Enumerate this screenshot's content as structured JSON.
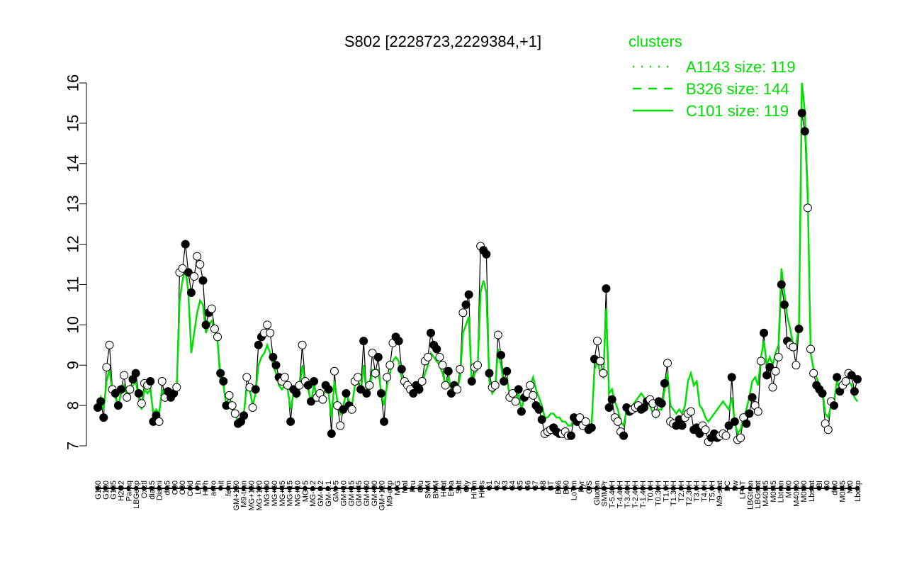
{
  "chart_data": {
    "type": "line",
    "title": "S802 [2228723,2229384,+1]",
    "xlabel": "",
    "ylabel": "",
    "ylim": [
      7,
      16
    ],
    "yticks": [
      "7",
      "8",
      "9",
      "10",
      "11",
      "12",
      "13",
      "14",
      "15",
      "16"
    ],
    "x_tick_labels": [
      "G150",
      "G180",
      "G135",
      "H2O2",
      "Paraq",
      "LBGexp",
      "Oxctl",
      "dia15",
      "Diami",
      "dia5",
      "C90",
      "C30",
      "Cold",
      "LPh",
      "HPh",
      "aero",
      "nit",
      "ferm",
      "GM+150",
      "M9-tran",
      "MG+150",
      "MG+120",
      "MG+90",
      "MG+60",
      "MG+45",
      "MG+15",
      "MG+10",
      "MG+5",
      "MG-0.2",
      "GM-0.2",
      "GM-0.1",
      "GM+5",
      "GM+10",
      "GM+15",
      "GM+45",
      "GM+60",
      "GM+90",
      "GM+120",
      "M9-exp",
      "M/G",
      "Mal",
      "Fru",
      "Glu",
      "SMM",
      "BMM",
      "Heat",
      "Etha",
      "Salt",
      "Gly",
      "HiTm",
      "HiOs",
      "S1",
      "S2",
      "S3",
      "S4",
      "S5",
      "S6",
      "S7",
      "S8",
      "BT",
      "B36",
      "B60",
      "LoTm",
      "Pyr",
      "G/S",
      "Glucon",
      "SMMPr",
      "T-5.40H",
      "T-4.40H",
      "T-3.40H",
      "T-2.40H",
      "T-1.40H",
      "T0.0H",
      "T0.30H",
      "T1.0H",
      "T1.30H",
      "T2.0H",
      "T2.30H",
      "T3.0H",
      "T4.0H",
      "T5.0H",
      "M9-stat",
      "BC",
      "Sw",
      "LPhT",
      "LBGtran",
      "LBGstat",
      "M40t45",
      "M0t45",
      "Lbtran",
      "M0t0",
      "M40t90",
      "M0t90",
      "Lbstat",
      "BI",
      "S0",
      "dia0",
      "M0t45",
      "Mt0",
      "Lbexp"
    ],
    "legend": {
      "title": "clusters",
      "placement": "top-right",
      "entries": [
        {
          "name": "A1143 size: 119",
          "style": "dotted"
        },
        {
          "name": "B326 size: 144",
          "style": "dashed"
        },
        {
          "name": "C101 size: 119",
          "style": "solid"
        }
      ]
    },
    "series": [
      {
        "style": "black-points-line",
        "values": [
          7.95,
          8.1,
          7.7,
          8.95,
          9.5,
          8.4,
          8.3,
          8.0,
          8.4,
          8.75,
          8.2,
          8.4,
          8.65,
          8.8,
          8.3,
          8.05,
          8.55,
          8.5,
          8.6,
          7.6,
          7.75,
          7.6,
          8.6,
          8.2,
          8.35,
          8.2,
          8.3,
          8.45,
          11.3,
          11.4,
          12.0,
          11.3,
          10.8,
          11.2,
          11.7,
          11.5,
          11.1,
          10.0,
          10.3,
          10.4,
          9.9,
          9.7,
          8.8,
          8.6,
          8.0,
          8.25,
          8.0,
          7.8,
          7.55,
          7.6,
          7.75,
          8.7,
          8.45,
          7.95,
          8.4,
          9.5,
          9.7,
          9.8,
          10.0,
          9.8,
          9.2,
          9.0,
          8.7,
          8.6,
          8.7,
          8.5,
          7.6,
          8.4,
          8.3,
          8.5,
          9.5,
          8.6,
          8.5,
          8.1,
          8.6,
          8.2,
          8.3,
          8.15,
          8.5,
          8.4,
          7.3,
          8.85,
          8.0,
          7.5,
          7.9,
          8.3,
          8.0,
          7.9,
          8.6,
          8.7,
          8.4,
          9.6,
          8.3,
          8.5,
          9.3,
          8.8,
          9.2,
          8.3,
          7.6,
          8.7,
          9.0,
          9.55,
          9.7,
          9.6,
          8.9,
          8.6,
          8.5,
          8.4,
          8.3,
          8.5,
          8.4,
          8.6,
          9.1,
          9.2,
          9.8,
          9.5,
          9.4,
          9.2,
          9.0,
          8.5,
          8.85,
          8.3,
          8.5,
          8.4,
          8.9,
          10.3,
          10.5,
          10.75,
          8.6,
          8.95,
          9.0,
          11.95,
          11.85,
          11.75,
          8.8,
          8.45,
          8.5,
          9.75,
          9.25,
          8.6,
          8.85,
          8.2,
          8.3,
          8.1,
          8.4,
          7.85,
          8.2,
          8.3,
          8.5,
          8.25,
          8.0,
          7.9,
          7.65,
          7.3,
          7.35,
          7.4,
          7.45,
          7.35,
          7.3,
          7.3,
          7.35,
          7.25,
          7.25,
          7.7,
          7.6,
          7.7,
          7.5,
          7.6,
          7.4,
          7.45,
          9.15,
          9.6,
          9.1,
          8.8,
          10.9,
          7.95,
          8.15,
          7.7,
          7.6,
          7.35,
          7.25,
          7.95,
          7.85,
          7.9,
          7.95,
          8.0,
          7.9,
          7.95,
          8.1,
          8.15,
          8.05,
          7.8,
          8.1,
          8.05,
          8.55,
          9.05,
          7.6,
          7.55,
          7.5,
          7.65,
          7.5,
          7.7,
          7.8,
          7.85,
          7.4,
          7.45,
          7.3,
          7.5,
          7.4,
          7.1,
          7.2,
          7.3,
          7.2,
          7.25,
          7.3,
          7.25,
          7.5,
          8.7,
          7.6,
          7.15,
          7.2,
          7.7,
          7.55,
          7.8,
          8.2,
          8.0,
          7.85,
          9.1,
          9.8,
          8.75,
          8.95,
          8.45,
          8.85,
          9.2,
          11.0,
          10.5,
          9.6,
          9.5,
          9.45,
          9.0,
          9.9,
          15.25,
          14.8,
          12.9,
          9.4,
          8.8,
          8.5,
          8.4,
          8.3,
          7.55,
          7.4,
          8.1,
          8.0,
          8.7,
          8.35,
          8.5,
          8.6,
          8.8,
          8.75,
          8.35,
          8.65
        ]
      },
      {
        "style": "green-solid",
        "values": [
          8.0,
          8.2,
          7.9,
          8.6,
          8.9,
          8.3,
          8.2,
          8.0,
          8.3,
          8.5,
          8.2,
          8.3,
          8.5,
          8.6,
          8.2,
          7.9,
          8.4,
          8.3,
          8.4,
          7.8,
          7.9,
          7.8,
          8.4,
          8.2,
          8.3,
          8.2,
          8.3,
          8.4,
          10.6,
          11.1,
          11.4,
          10.8,
          9.3,
          9.8,
          10.3,
          10.6,
          10.5,
          9.8,
          10.0,
          10.1,
          9.8,
          9.6,
          8.6,
          8.5,
          8.0,
          8.1,
          7.9,
          7.8,
          7.6,
          7.7,
          7.8,
          8.5,
          8.4,
          8.0,
          8.3,
          9.0,
          9.2,
          9.3,
          9.5,
          9.3,
          9.0,
          8.8,
          8.5,
          8.4,
          8.5,
          8.4,
          7.9,
          8.3,
          8.2,
          8.4,
          9.0,
          8.5,
          8.4,
          8.1,
          8.5,
          8.2,
          8.3,
          8.2,
          8.4,
          8.3,
          7.7,
          8.6,
          8.1,
          7.8,
          8.0,
          8.3,
          8.1,
          8.0,
          8.5,
          8.6,
          8.3,
          9.0,
          8.3,
          8.4,
          8.9,
          8.7,
          8.9,
          8.3,
          8.0,
          8.5,
          8.8,
          9.1,
          9.2,
          9.1,
          8.7,
          8.5,
          8.4,
          8.4,
          8.3,
          8.4,
          8.3,
          8.5,
          8.8,
          9.0,
          9.3,
          9.2,
          9.1,
          9.0,
          8.8,
          8.5,
          8.7,
          8.4,
          8.5,
          8.4,
          8.7,
          9.8,
          10.0,
          10.2,
          8.5,
          8.8,
          8.9,
          10.8,
          11.1,
          10.8,
          8.6,
          8.3,
          8.4,
          9.4,
          9.0,
          8.5,
          8.7,
          8.2,
          8.3,
          8.1,
          8.3,
          7.9,
          8.2,
          8.3,
          8.5,
          8.7,
          8.4,
          8.2,
          8.0,
          7.7,
          7.7,
          7.8,
          7.8,
          7.7,
          7.7,
          7.6,
          7.6,
          7.5,
          7.5,
          7.7,
          7.6,
          7.7,
          7.6,
          7.6,
          7.5,
          7.5,
          8.9,
          9.1,
          8.8,
          8.7,
          10.4,
          8.3,
          8.4,
          8.1,
          7.9,
          7.6,
          7.5,
          7.9,
          7.9,
          8.0,
          8.1,
          8.2,
          8.3,
          8.2,
          8.1,
          8.0,
          7.8,
          7.7,
          7.9,
          7.9,
          8.4,
          8.8,
          8.0,
          7.9,
          7.8,
          7.9,
          7.8,
          8.0,
          8.6,
          8.8,
          8.5,
          8.6,
          8.0,
          7.9,
          7.7,
          7.6,
          7.7,
          7.8,
          7.9,
          8.0,
          8.1,
          8.0,
          7.9,
          8.2,
          7.6,
          7.3,
          7.4,
          7.7,
          7.9,
          8.2,
          8.6,
          8.7,
          8.5,
          9.2,
          9.6,
          9.0,
          9.2,
          9.0,
          9.3,
          9.5,
          11.4,
          10.8,
          10.2,
          9.9,
          9.5,
          9.5,
          10.0,
          16.0,
          15.3,
          13.2,
          9.3,
          8.9,
          8.7,
          8.5,
          8.4,
          7.8,
          7.7,
          8.0,
          8.1,
          8.6,
          8.4,
          8.5,
          8.5,
          8.6,
          8.5,
          8.2,
          8.1
        ]
      },
      {
        "style": "green-dashed",
        "values": [
          8.0,
          8.2,
          7.9,
          8.6,
          8.9,
          8.3,
          8.2,
          8.0,
          8.3,
          8.5,
          8.2,
          8.3,
          8.5,
          8.6,
          8.2,
          7.9,
          8.4,
          8.3,
          8.4,
          7.8,
          7.9,
          7.8,
          8.4,
          8.2,
          8.3,
          8.2,
          8.3,
          8.4,
          10.6,
          11.1,
          11.4,
          10.8,
          9.3,
          9.8,
          10.3,
          10.6,
          10.5,
          9.8,
          10.0,
          10.1,
          9.8,
          9.6,
          8.6,
          8.5,
          8.0,
          8.1,
          7.9,
          7.8,
          7.6,
          7.7,
          7.8,
          8.5,
          8.4,
          8.0,
          8.3,
          9.0,
          9.2,
          9.3,
          9.5,
          9.3,
          9.0,
          8.8,
          8.5,
          8.4,
          8.5,
          8.4,
          7.9,
          8.3,
          8.2,
          8.4,
          9.0,
          8.5,
          8.4,
          8.1,
          8.5,
          8.2,
          8.3,
          8.2,
          8.4,
          8.3,
          7.7,
          8.6,
          8.1,
          7.8,
          8.0,
          8.3,
          8.1,
          8.0,
          8.5,
          8.6,
          8.3,
          9.0,
          8.3,
          8.4,
          8.9,
          8.7,
          8.9,
          8.3,
          8.0,
          8.5,
          8.8,
          9.1,
          9.2,
          9.1,
          8.7,
          8.5,
          8.4,
          8.4,
          8.3,
          8.4,
          8.3,
          8.5,
          8.8,
          9.0,
          9.3,
          9.2,
          9.1,
          9.0,
          8.8,
          8.5,
          8.7,
          8.4,
          8.5,
          8.4,
          8.7,
          9.8,
          10.0,
          10.2,
          8.5,
          8.8,
          8.9,
          10.8,
          11.1,
          10.8,
          8.6,
          8.3,
          8.4,
          9.4,
          9.0,
          8.5,
          8.7,
          8.2,
          8.3,
          8.1,
          8.3,
          7.9,
          8.2,
          8.3,
          8.5,
          8.7,
          8.4,
          8.2,
          8.0,
          7.7,
          7.7,
          7.8,
          7.8,
          7.7,
          7.7,
          7.6,
          7.6,
          7.5,
          7.5,
          7.7,
          7.6,
          7.7,
          7.6,
          7.6,
          7.5,
          7.5,
          8.9,
          9.1,
          8.8,
          8.7,
          10.4,
          8.3,
          8.4,
          8.1,
          7.9,
          7.6,
          7.5,
          7.9,
          7.9,
          8.0,
          8.1,
          8.2,
          8.3,
          8.2,
          8.1,
          8.0,
          7.8,
          7.7,
          7.9,
          7.9,
          8.4,
          8.8,
          8.0,
          7.9,
          7.8,
          7.9,
          7.8,
          8.0,
          8.6,
          8.8,
          8.5,
          8.6,
          8.0,
          7.9,
          7.7,
          7.6,
          7.7,
          7.8,
          7.9,
          8.0,
          8.1,
          8.0,
          7.9,
          8.2,
          7.6,
          7.3,
          7.4,
          7.7,
          7.9,
          8.2,
          8.6,
          8.7,
          8.5,
          9.2,
          9.6,
          9.0,
          9.2,
          9.0,
          9.3,
          9.5,
          11.4,
          10.8,
          10.2,
          9.9,
          9.5,
          9.5,
          10.0,
          16.0,
          15.3,
          13.2,
          9.3,
          8.9,
          8.7,
          8.5,
          8.4,
          7.8,
          7.7,
          8.0,
          8.1,
          8.6,
          8.4,
          8.5,
          8.5,
          8.6,
          8.5,
          8.2,
          8.1
        ]
      }
    ]
  }
}
